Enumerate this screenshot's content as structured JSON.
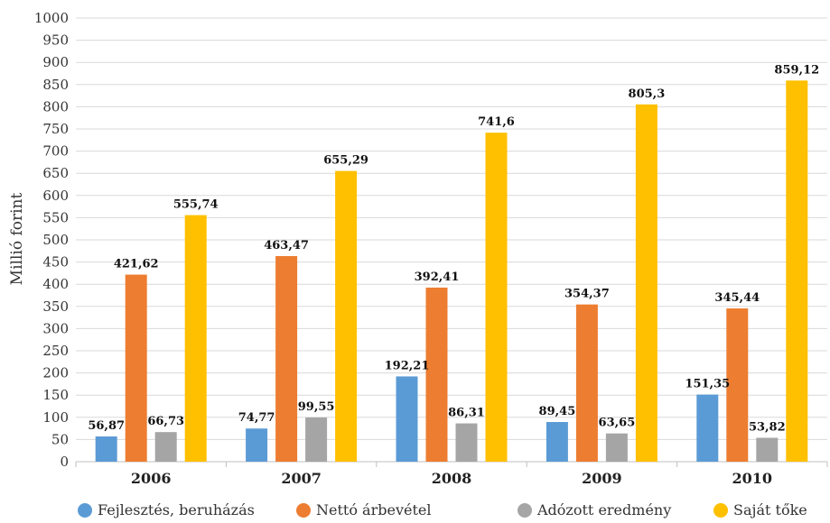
{
  "chart_data": {
    "type": "bar",
    "categories": [
      "2006",
      "2007",
      "2008",
      "2009",
      "2010"
    ],
    "ylabel": "Millió forint",
    "xlabel": "",
    "ylim": [
      0,
      1000
    ],
    "ytick_step": 50,
    "grid": true,
    "legend_position": "bottom",
    "series": [
      {
        "name": "Fejlesztés, beruházás",
        "color": "#5B9BD5",
        "values": [
          56.87,
          74.77,
          192.21,
          89.45,
          151.35
        ],
        "labels": [
          "56,87",
          "74,77",
          "192,21",
          "89,45",
          "151,35"
        ]
      },
      {
        "name": "Nettó árbevétel",
        "color": "#ED7D31",
        "values": [
          421.62,
          463.47,
          392.41,
          354.37,
          345.44
        ],
        "labels": [
          "421,62",
          "463,47",
          "392,41",
          "354,37",
          "345,44"
        ]
      },
      {
        "name": "Adózott eredmény",
        "color": "#A5A5A5",
        "values": [
          66.73,
          99.55,
          86.31,
          63.65,
          53.82
        ],
        "labels": [
          "66,73",
          "99,55",
          "86,31",
          "63,65",
          "53,82"
        ]
      },
      {
        "name": "Saját tőke",
        "color": "#FFC000",
        "values": [
          555.74,
          655.29,
          741.6,
          805.3,
          859.12
        ],
        "labels": [
          "555,74",
          "655,29",
          "741,6",
          "805,3",
          "859,12"
        ]
      }
    ]
  }
}
